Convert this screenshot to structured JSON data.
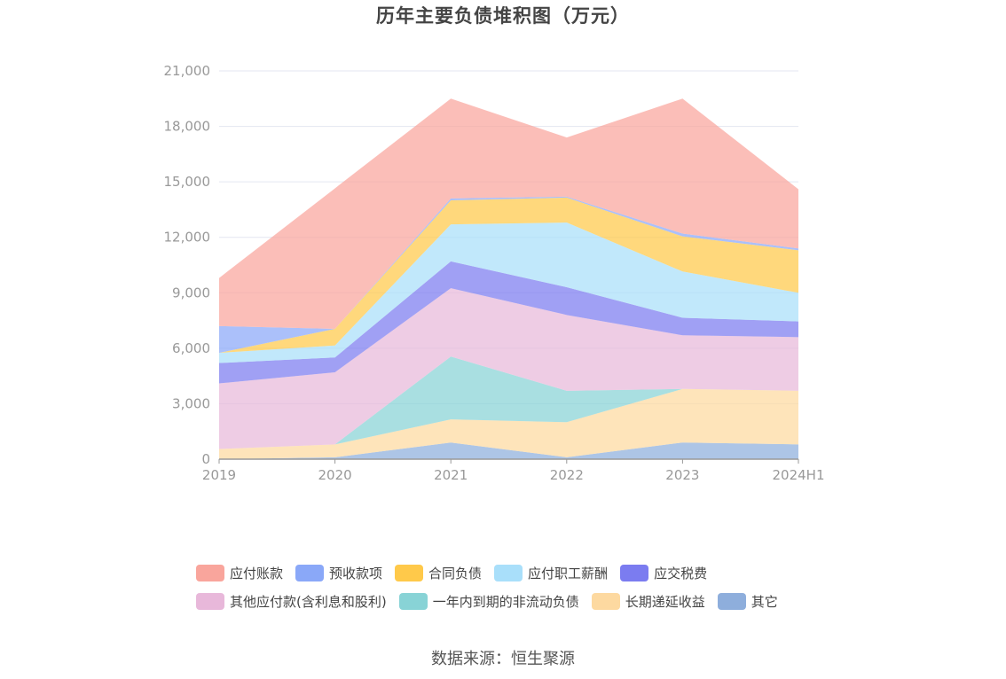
{
  "chart_data": {
    "type": "area",
    "stacked": true,
    "title": "历年主要负债堆积图（万元）",
    "categories": [
      "2019",
      "2020",
      "2021",
      "2022",
      "2023",
      "2024H1"
    ],
    "ylim": [
      0,
      21000
    ],
    "yticks": [
      0,
      3000,
      6000,
      9000,
      12000,
      15000,
      18000,
      21000
    ],
    "ytick_labels": [
      "0",
      "3,000",
      "6,000",
      "9,000",
      "12,000",
      "15,000",
      "18,000",
      "21,000"
    ],
    "grid": true,
    "legend_position": "bottom",
    "series": [
      {
        "name": "其它",
        "color": "#8eaedc",
        "values": [
          0,
          100,
          900,
          100,
          900,
          800
        ]
      },
      {
        "name": "长期递延收益",
        "color": "#fdd9a0",
        "values": [
          550,
          700,
          1250,
          1900,
          2900,
          2900
        ]
      },
      {
        "name": "一年内到期的非流动负债",
        "color": "#88d3d6",
        "values": [
          0,
          0,
          3400,
          1700,
          0,
          0
        ]
      },
      {
        "name": "其他应付款(含利息和股利)",
        "color": "#e8b8da",
        "values": [
          3550,
          3900,
          3700,
          4100,
          2900,
          2900
        ]
      },
      {
        "name": "应交税费",
        "color": "#7b7cf0",
        "values": [
          1100,
          800,
          1450,
          1500,
          950,
          850
        ]
      },
      {
        "name": "应付职工薪酬",
        "color": "#a9dffa",
        "values": [
          550,
          650,
          2000,
          3500,
          2500,
          1550
        ]
      },
      {
        "name": "合同负债",
        "color": "#ffc94a",
        "values": [
          0,
          900,
          1300,
          1350,
          1900,
          2300
        ]
      },
      {
        "name": "预收款项",
        "color": "#8aa8f8",
        "values": [
          1450,
          0,
          100,
          50,
          150,
          100
        ]
      },
      {
        "name": "应付账款",
        "color": "#f9a59c",
        "values": [
          2600,
          7600,
          5400,
          3200,
          7300,
          3200
        ]
      }
    ]
  },
  "legend": {
    "rows": [
      [
        {
          "label": "应付账款",
          "color": "#f9a59c"
        },
        {
          "label": "预收款项",
          "color": "#8aa8f8"
        },
        {
          "label": "合同负债",
          "color": "#ffc94a"
        },
        {
          "label": "应付职工薪酬",
          "color": "#a9dffa"
        },
        {
          "label": "应交税费",
          "color": "#7b7cf0"
        }
      ],
      [
        {
          "label": "其他应付款(含利息和股利)",
          "color": "#e8b8da"
        },
        {
          "label": "一年内到期的非流动负债",
          "color": "#88d3d6"
        },
        {
          "label": "长期递延收益",
          "color": "#fdd9a0"
        },
        {
          "label": "其它",
          "color": "#8eaedc"
        }
      ]
    ]
  },
  "source": "数据来源：恒生聚源"
}
